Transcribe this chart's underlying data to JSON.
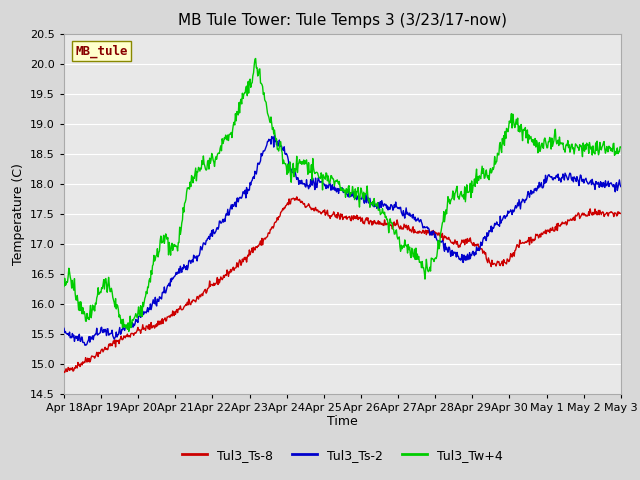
{
  "title": "MB Tule Tower: Tule Temps 3 (3/23/17-now)",
  "xlabel": "Time",
  "ylabel": "Temperature (C)",
  "watermark": "MB_tule",
  "ylim": [
    14.5,
    20.5
  ],
  "yticks": [
    14.5,
    15.0,
    15.5,
    16.0,
    16.5,
    17.0,
    17.5,
    18.0,
    18.5,
    19.0,
    19.5,
    20.0,
    20.5
  ],
  "xtick_labels": [
    "Apr 18",
    "Apr 19",
    "Apr 20",
    "Apr 21",
    "Apr 22",
    "Apr 23",
    "Apr 24",
    "Apr 25",
    "Apr 26",
    "Apr 27",
    "Apr 28",
    "Apr 29",
    "Apr 30",
    "May 1",
    "May 2",
    "May 3"
  ],
  "legend_entries": [
    "Tul3_Ts-8",
    "Tul3_Ts-2",
    "Tul3_Tw+4"
  ],
  "line_colors": [
    "#cc0000",
    "#0000cc",
    "#00cc00"
  ],
  "fig_bg_color": "#d8d8d8",
  "plot_bg_color": "#e8e8e8",
  "grid_color": "#ffffff",
  "watermark_bg": "#ffffcc",
  "watermark_fg": "#880000",
  "title_fontsize": 11,
  "axis_fontsize": 9,
  "tick_fontsize": 8
}
